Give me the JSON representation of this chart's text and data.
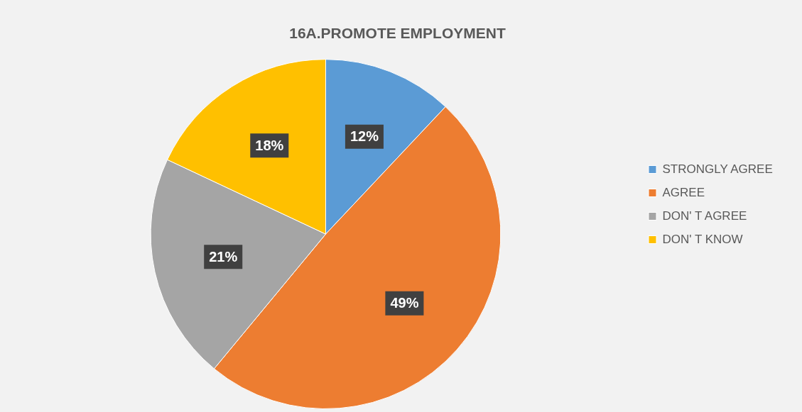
{
  "chart_data": {
    "type": "pie",
    "title": "16A.PROMOTE EMPLOYMENT",
    "categories": [
      "STRONGLY AGREE",
      "AGREE",
      "DON' T AGREE",
      "DON' T KNOW"
    ],
    "values": [
      12,
      49,
      21,
      18
    ],
    "colors": [
      "#5b9bd5",
      "#ed7d31",
      "#a5a5a5",
      "#ffc000"
    ],
    "value_labels": [
      "12%",
      "49%",
      "21%",
      "18%"
    ],
    "legend": "right"
  }
}
